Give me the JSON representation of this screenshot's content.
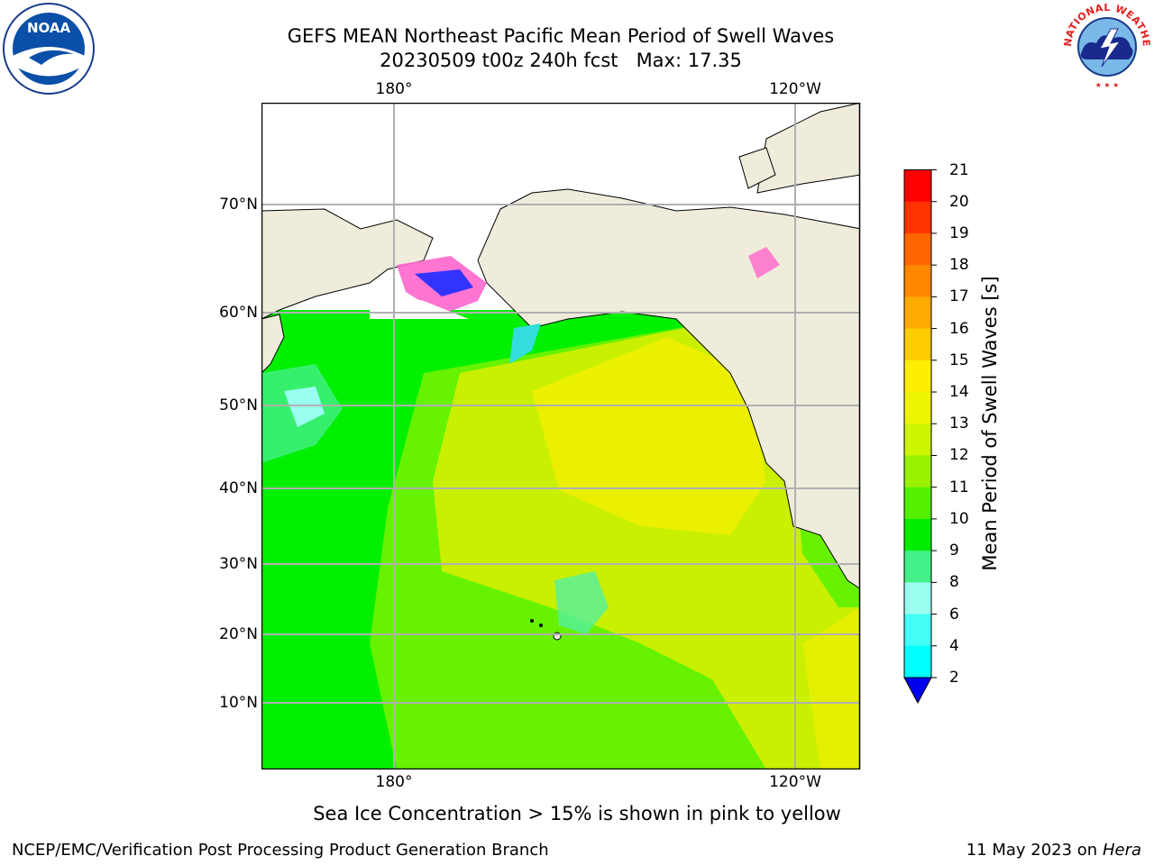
{
  "title": {
    "line1": "GEFS MEAN Northeast Pacific Mean Period of Swell Waves",
    "line2_run": "20230509 t00z 240h fcst",
    "line2_max": "Max: 17.35"
  },
  "map": {
    "lon_labels": [
      "180°",
      "120°W"
    ],
    "lat_labels": [
      "70°N",
      "60°N",
      "50°N",
      "40°N",
      "30°N",
      "20°N",
      "10°N"
    ],
    "colors": {
      "land": "#efecdc",
      "ocean_green": "#00f000",
      "ocean_mid": "#66f200",
      "ocean_yellowgreen": "#c8f000",
      "ocean_yellow": "#f0f000",
      "gridline": "#b0b0b0"
    }
  },
  "colorbar": {
    "label": "Mean Period of Swell Waves [s]",
    "ticks": [
      "21",
      "20",
      "19",
      "18",
      "17",
      "16",
      "15",
      "14",
      "13",
      "12",
      "11",
      "10",
      "9",
      "8",
      "6",
      "4",
      "2"
    ],
    "colors": [
      "#ff0000",
      "#ff3300",
      "#ff6600",
      "#ff8800",
      "#ffaa00",
      "#ffcc00",
      "#ffee00",
      "#eef500",
      "#ccf500",
      "#99f000",
      "#55f000",
      "#00ec00",
      "#44f088",
      "#9bfff0",
      "#44fff5",
      "#00ffff",
      "#00ccff",
      "#0077ff",
      "#0000ee"
    ]
  },
  "logos": {
    "left_text": "NOAA",
    "right_text": "NATIONAL WEATHER SERVICE"
  },
  "note": "Sea Ice Concentration > 15% is shown in pink to yellow",
  "footer": {
    "left": "NCEP/EMC/Verification Post Processing Product Generation Branch",
    "right_date": "11 May 2023 on",
    "right_host": "Hera"
  }
}
